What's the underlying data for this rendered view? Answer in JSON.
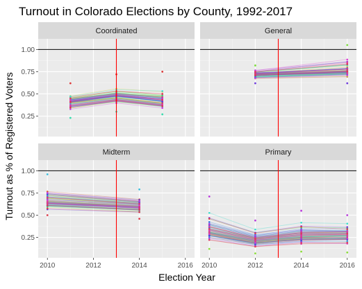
{
  "chart_data": {
    "type": "line",
    "title": "Turnout in Colorado Elections by County, 1992-2017",
    "xlabel": "Election Year",
    "ylabel": "Turnout as % of Registered Voters",
    "xlim": [
      2009.6,
      2016.4
    ],
    "ylim": [
      0.02,
      1.12
    ],
    "x_ticks": [
      2010,
      2012,
      2014,
      2016
    ],
    "x_tick_labels": [
      "2010",
      "2012",
      "2014",
      "2016"
    ],
    "y_ticks": [
      0.25,
      0.5,
      0.75,
      1.0
    ],
    "y_tick_labels": [
      "0.25",
      "0.50",
      "0.75",
      "1.00"
    ],
    "hline_y": 1.0,
    "hline_color": "#000000",
    "vline_x": 2013,
    "vline_color": "#ff0000",
    "grid": true,
    "legend": "none",
    "facets": [
      {
        "label": "Coordinated",
        "x": [
          2011,
          2013,
          2015
        ],
        "y_summary": {
          "2011": {
            "min": 0.23,
            "median": 0.4,
            "max": 0.62
          },
          "2013": {
            "min": 0.3,
            "median": 0.46,
            "max": 0.72
          },
          "2015": {
            "min": 0.27,
            "median": 0.4,
            "max": 0.75
          }
        }
      },
      {
        "label": "General",
        "x": [
          2012,
          2016
        ],
        "y_summary": {
          "2012": {
            "min": 0.62,
            "median": 0.72,
            "max": 0.82
          },
          "2016": {
            "min": 0.62,
            "median": 0.76,
            "max": 1.05
          }
        }
      },
      {
        "label": "Midterm",
        "x": [
          2010,
          2014
        ],
        "y_summary": {
          "2010": {
            "min": 0.5,
            "median": 0.65,
            "max": 0.96
          },
          "2014": {
            "min": 0.46,
            "median": 0.6,
            "max": 0.79
          }
        }
      },
      {
        "label": "Primary",
        "x": [
          2010,
          2012,
          2014,
          2016
        ],
        "y_summary": {
          "2010": {
            "min": 0.12,
            "median": 0.32,
            "max": 0.71
          },
          "2012": {
            "min": 0.07,
            "median": 0.22,
            "max": 0.44
          },
          "2014": {
            "min": 0.09,
            "median": 0.27,
            "max": 0.55
          },
          "2016": {
            "min": 0.08,
            "median": 0.28,
            "max": 0.5
          }
        }
      }
    ],
    "series_count_per_facet": 64
  }
}
